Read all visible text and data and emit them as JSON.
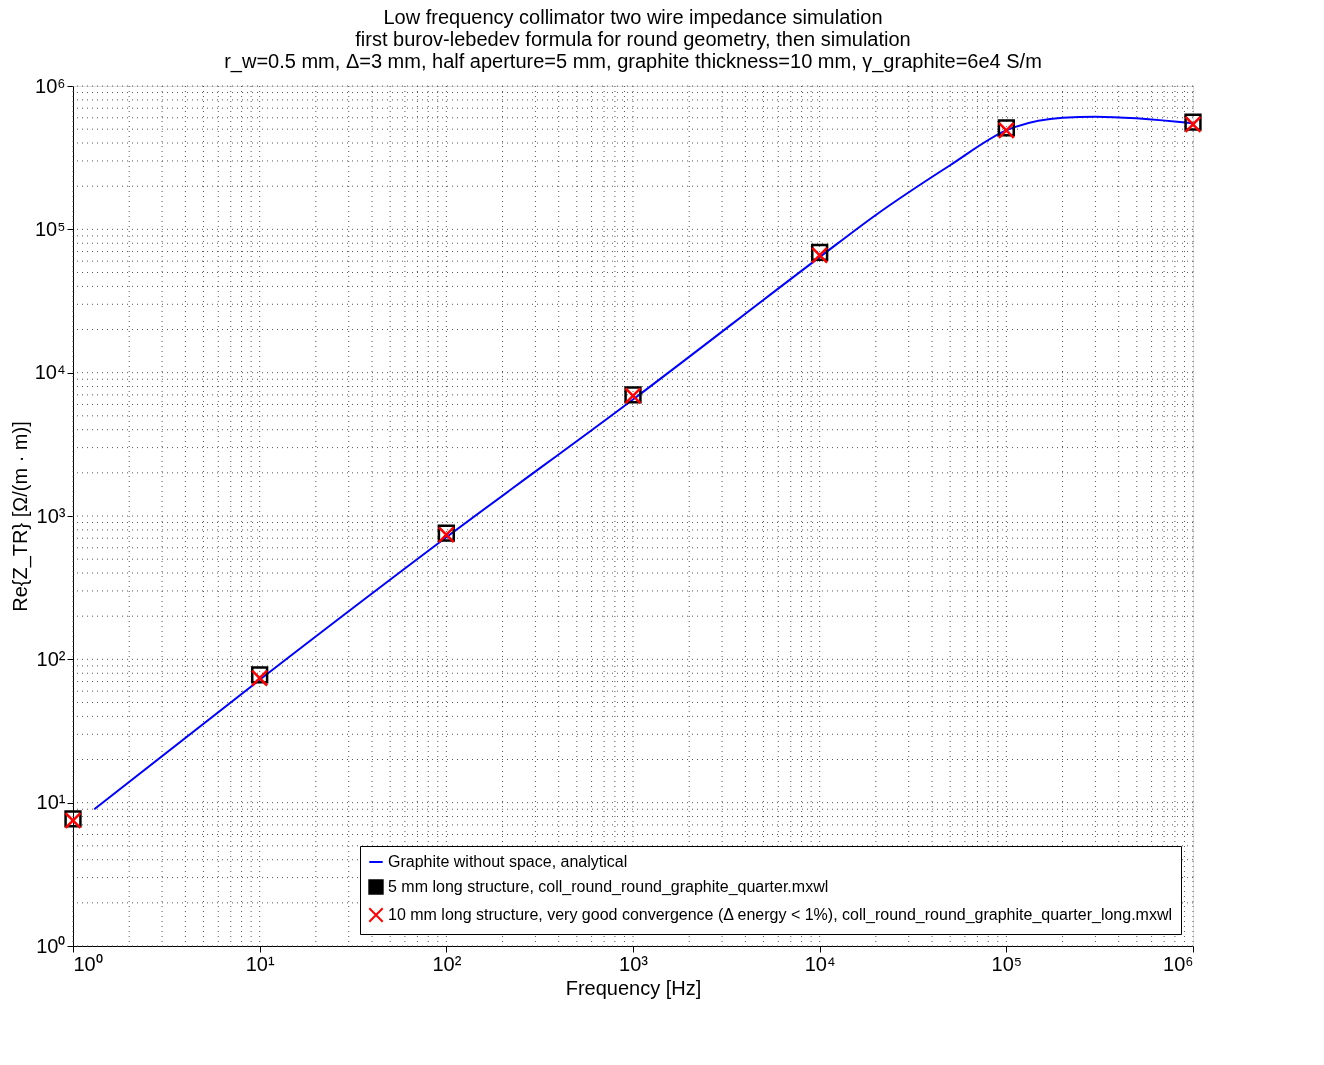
{
  "chart_data": {
    "type": "line",
    "title": "Low frequency collimator two wire impedance simulation",
    "subtitle": [
      "first burov-lebedev formula for round geometry, then simulation",
      "r_w=0.5 mm, Δ=3 mm, half aperture=5 mm, graphite thickness=10 mm, γ_graphite=6e4 S/m"
    ],
    "xlabel": "Frequency [Hz]",
    "ylabel": "Re{Z_TR} [Ω/(m · m)]",
    "log": "xy",
    "grid": true,
    "legend": "bottom right",
    "xlim": [
      1,
      1000000
    ],
    "ylim": [
      1,
      1000000
    ],
    "xticks": [
      {
        "value": 1,
        "label": "10⁰"
      },
      {
        "value": 10,
        "label": "10¹"
      },
      {
        "value": 100,
        "label": "10²"
      },
      {
        "value": 1000,
        "label": "10³"
      },
      {
        "value": 10000,
        "label": "10⁴"
      },
      {
        "value": 100000,
        "label": "10⁵"
      },
      {
        "value": 1000000,
        "label": "10⁶"
      }
    ],
    "yticks": [
      {
        "value": 1,
        "label": "10⁰"
      },
      {
        "value": 10,
        "label": "10¹"
      },
      {
        "value": 100,
        "label": "10²"
      },
      {
        "value": 1000,
        "label": "10³"
      },
      {
        "value": 10000,
        "label": "10⁴"
      },
      {
        "value": 100000,
        "label": "10⁵"
      },
      {
        "value": 1000000,
        "label": "10⁶"
      }
    ],
    "series": [
      {
        "name": "Graphite without space, analytical",
        "color": "#0000ff",
        "line_style": "solid",
        "x": [
          1.3,
          10,
          100,
          1000,
          10000,
          20000,
          50000,
          100000,
          200000,
          300000,
          1000000
        ],
        "values": [
          9.0,
          72,
          710,
          6500,
          64000,
          126000,
          280000,
          490000,
          600000,
          610000,
          550000
        ]
      },
      {
        "name": "5 mm long structure, coll_round_round_graphite_quarter.mxwl",
        "type": "scatter",
        "color": "#000000",
        "marker": "square",
        "x": [
          1,
          10,
          100,
          1000,
          10000,
          100000,
          1000000
        ],
        "values": [
          7.7,
          78,
          760,
          7000,
          69000,
          510000,
          560000
        ]
      },
      {
        "name": "10 mm long structure, very good convergence (Δ energy < 1%), coll_round_round_graphite_quarter_long.mxwl",
        "type": "scatter",
        "color": "#ff0000",
        "marker": "cross",
        "x": [
          1,
          10,
          100,
          1000,
          10000,
          100000,
          1000000
        ],
        "values": [
          7.5,
          74,
          740,
          6900,
          66000,
          490000,
          540000
        ]
      }
    ]
  }
}
